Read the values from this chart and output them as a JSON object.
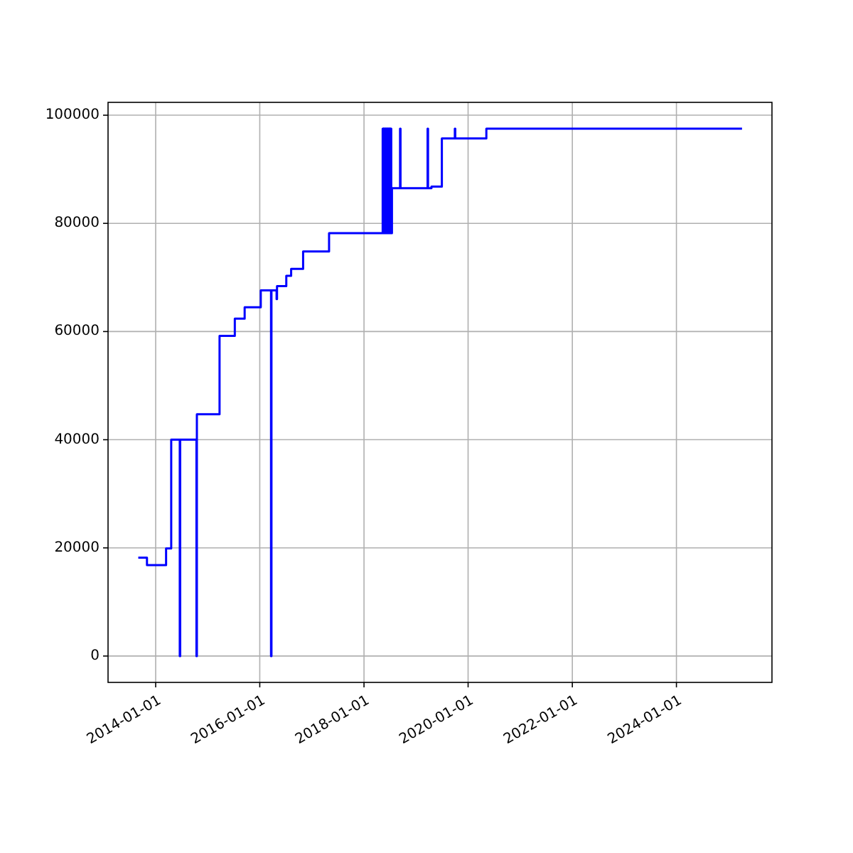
{
  "chart_data": {
    "type": "step",
    "x": [
      "2013-09-01",
      "2013-11-01",
      "2014-03-15",
      "2014-04-20",
      "2014-06-19",
      "2014-06-22",
      "2014-10-14",
      "2014-10-17",
      "2015-03-25",
      "2015-07-10",
      "2015-09-17",
      "2016-01-08",
      "2016-03-20",
      "2016-03-23",
      "2016-04-28",
      "2016-05-01",
      "2016-07-05",
      "2016-08-08",
      "2016-10-31",
      "2017-05-01",
      "2018-05-12",
      "2018-05-16",
      "2018-05-20",
      "2018-05-24",
      "2018-05-28",
      "2018-06-01",
      "2018-06-05",
      "2018-06-09",
      "2018-06-13",
      "2018-06-17",
      "2018-06-21",
      "2018-06-25",
      "2018-06-29",
      "2018-07-03",
      "2018-07-07",
      "2018-07-11",
      "2018-07-16",
      "2018-09-11",
      "2018-09-14",
      "2019-03-23",
      "2019-03-26",
      "2019-04-19",
      "2019-07-01",
      "2019-09-30",
      "2019-10-03",
      "2020-05-08",
      "2025-04-05"
    ],
    "series": [
      {
        "color": "#0000ff",
        "values": [
          18200,
          16800,
          19900,
          40000,
          0,
          40000,
          0,
          44700,
          59200,
          62400,
          64500,
          67600,
          0,
          67600,
          66000,
          68400,
          70300,
          71600,
          74800,
          78200,
          97500,
          78200,
          97500,
          78200,
          97500,
          78200,
          97500,
          78200,
          97500,
          78200,
          97500,
          78200,
          97500,
          78200,
          97500,
          78200,
          86500,
          97500,
          86500,
          97500,
          86500,
          86800,
          95700,
          97500,
          95700,
          97500,
          97500
        ]
      }
    ],
    "xlim": [
      "2013-02-01",
      "2025-11-01"
    ],
    "xticks": [
      "2014-01-01",
      "2016-01-01",
      "2018-01-01",
      "2020-01-01",
      "2022-01-01",
      "2024-01-01"
    ],
    "ylim": [
      -4875,
      102375
    ],
    "yticks": [
      0,
      20000,
      40000,
      60000,
      80000,
      100000
    ],
    "grid": true
  }
}
